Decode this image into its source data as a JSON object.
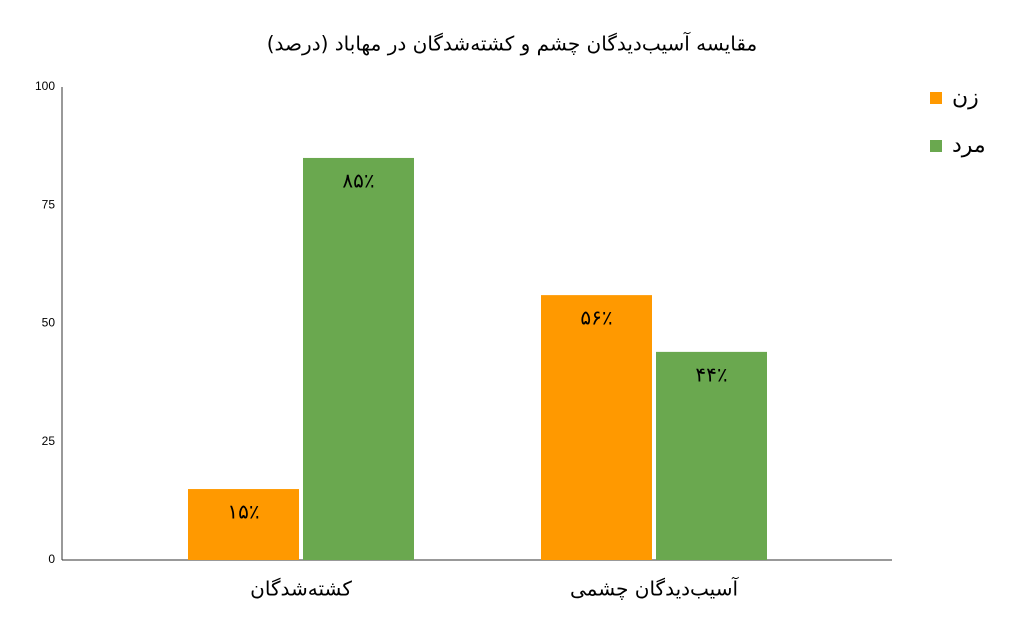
{
  "chart_data": {
    "type": "bar",
    "title": "مقایسه آسیب‌دیدگان چشم و کشته‌شدگان در مهاباد (درصد)",
    "categories": [
      "کشته‌شدگان",
      "آسیب‌دیدگان چشمی"
    ],
    "series": [
      {
        "name": "زن",
        "color": "#ff9900",
        "values": [
          15,
          56
        ],
        "value_labels": [
          "۱۵٪",
          "۵۶٪"
        ]
      },
      {
        "name": "مرد",
        "color": "#6aa84f",
        "values": [
          85,
          44
        ],
        "value_labels": [
          "۸۵٪",
          "۴۴٪"
        ]
      }
    ],
    "ylim": [
      0,
      100
    ],
    "yticks": [
      0,
      25,
      50,
      75,
      100
    ],
    "grid": false,
    "legend": "right"
  }
}
